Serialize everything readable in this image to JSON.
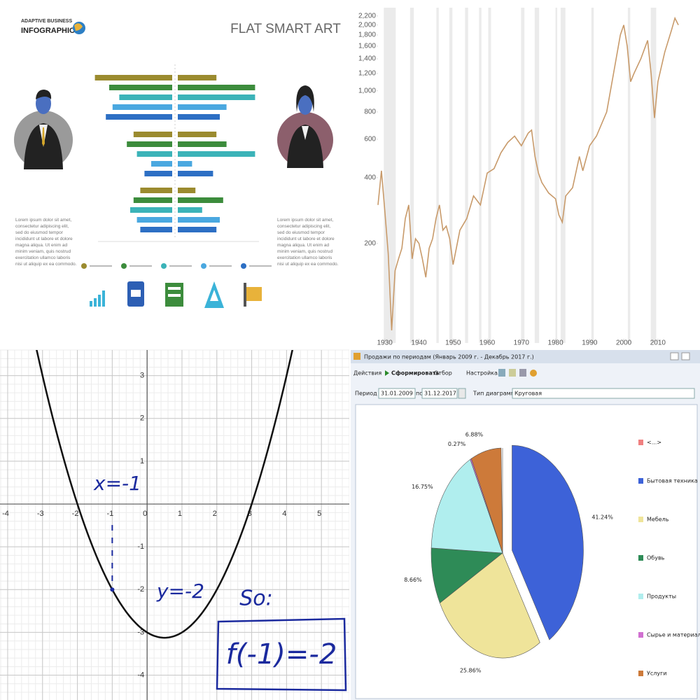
{
  "infographic": {
    "brand": [
      "ADAPTIVE BUSINESS",
      "INFOGRAPHICS"
    ],
    "title": "FLAT SMART ART",
    "colors": [
      "#9b8b2f",
      "#3c8c3c",
      "#3bb3b8",
      "#4aa8e0",
      "#2d6fc4"
    ],
    "xlim": [
      0,
      10
    ],
    "groups": [
      {
        "left": [
          9.2,
          7.5,
          6.3,
          7.1,
          7.9
        ],
        "right": [
          4.6,
          9.2,
          9.2,
          5.8,
          5.0
        ]
      },
      {
        "left": [
          4.6,
          5.4,
          4.2,
          2.5,
          3.3
        ],
        "right": [
          4.6,
          5.8,
          9.2,
          1.7,
          4.2
        ]
      },
      {
        "left": [
          3.8,
          4.6,
          5.0,
          4.2,
          3.8
        ],
        "right": [
          2.1,
          5.4,
          2.9,
          5.0,
          4.6
        ]
      }
    ],
    "text_left": "Lorem ipsum dolor sit amet, consectetur adipiscing elit, sed do eiusmod tempor incididunt ut labore et dolore magna aliqua. Ut enim ad minim veniam, quis nostrud exercitation ullamco laboris nisi ut aliquip ex ea commodo.",
    "text_right": "Lorem ipsum dolor sit amet, consectetur adipiscing elit, sed do eiusmod tempor incididunt ut labore et dolore magna aliqua. Ut enim ad minim veniam, quis nostrud exercitation ullamco laboris nisi ut aliquip ex ea commodo."
  },
  "line_chart": {
    "type": "line",
    "log_scale": true,
    "color": "#c89a6a",
    "band_color": "#ebebeb",
    "xlim": [
      1928,
      2017
    ],
    "ylim": [
      70,
      2400
    ],
    "xticks": [
      1930,
      1940,
      1950,
      1960,
      1970,
      1980,
      1990,
      2000,
      2010
    ],
    "yticks": [
      200,
      400,
      600,
      800,
      {
        "value": 1000,
        "label": "1,000"
      },
      {
        "value": 1200,
        "label": "1,200"
      },
      {
        "value": 1400,
        "label": "1,400"
      },
      {
        "value": 1600,
        "label": "1,600"
      },
      {
        "value": 1800,
        "label": "1,800"
      },
      {
        "value": 2000,
        "label": "2,000"
      },
      {
        "value": 2200,
        "label": "2,200"
      }
    ],
    "bands": [
      [
        1929.7,
        1933.2
      ],
      [
        1937.4,
        1938.5
      ],
      [
        1945.1,
        1945.8
      ],
      [
        1948.9,
        1949.8
      ],
      [
        1953.5,
        1954.4
      ],
      [
        1957.6,
        1958.3
      ],
      [
        1960.3,
        1961.1
      ],
      [
        1969.9,
        1970.9
      ],
      [
        1973.9,
        1975.2
      ],
      [
        1980.0,
        1980.5
      ],
      [
        1981.5,
        1982.9
      ],
      [
        1990.5,
        1991.2
      ],
      [
        2001.2,
        2001.9
      ],
      [
        2007.9,
        2009.5
      ]
    ],
    "x": [
      1928,
      1929,
      1930,
      1931,
      1932,
      1933,
      1934,
      1935,
      1936,
      1937,
      1938,
      1939,
      1940,
      1941,
      1942,
      1943,
      1944,
      1945,
      1946,
      1947,
      1948,
      1949,
      1950,
      1952,
      1954,
      1956,
      1958,
      1960,
      1962,
      1964,
      1966,
      1968,
      1970,
      1972,
      1973,
      1974,
      1975,
      1976,
      1978,
      1980,
      1981,
      1982,
      1983,
      1985,
      1987,
      1988,
      1990,
      1992,
      1995,
      1997,
      1999,
      2000,
      2001,
      2002,
      2003,
      2005,
      2007,
      2008,
      2009,
      2010,
      2012,
      2014,
      2015,
      2016
    ],
    "values": [
      300,
      430,
      280,
      180,
      80,
      150,
      170,
      190,
      260,
      300,
      170,
      210,
      200,
      170,
      140,
      190,
      210,
      260,
      300,
      230,
      240,
      210,
      160,
      230,
      260,
      330,
      300,
      420,
      440,
      520,
      580,
      620,
      560,
      640,
      660,
      500,
      420,
      380,
      340,
      320,
      270,
      250,
      330,
      360,
      500,
      430,
      560,
      620,
      800,
      1200,
      1800,
      2000,
      1600,
      1100,
      1200,
      1400,
      1700,
      1200,
      750,
      1100,
      1500,
      1900,
      2150,
      2000
    ]
  },
  "math_graph": {
    "xlim": [
      -4.22,
      5.82
    ],
    "ylim": [
      -4.58,
      3.6
    ],
    "xticks": [
      -4,
      -3,
      -2,
      -1,
      0,
      1,
      2,
      3,
      4,
      5
    ],
    "yticks": [
      -4,
      -3,
      -2,
      -1,
      1,
      2,
      3
    ],
    "minor_grid": 0.2,
    "curve": {
      "coefficients": [
        0.5,
        -0.5,
        -3
      ],
      "color": "#111111"
    },
    "point": {
      "x": -1,
      "y": -2
    },
    "annotations": [
      "x=-1",
      "y=-2",
      "So:",
      "f(-1)=-2"
    ]
  },
  "window": {
    "title": "Продажи по периодам (Январь 2009 г. - Декабрь 2017 г.)",
    "toolbar": [
      "Действия",
      "Сформировать",
      "Отбор",
      "Настройка..."
    ],
    "period_from_label": "Период с:",
    "period_from": "31.01.2009",
    "period_to_label": "по:",
    "period_to": "31.12.2017",
    "chart_type_label": "Тип диаграммы:",
    "chart_type": "Круговая",
    "chart": {
      "type": "pie",
      "categories": [
        "<...>",
        "Бытовая техника",
        "Мебель",
        "Обувь",
        "Продукты",
        "Сырье и материалы",
        "Услуги"
      ],
      "colors": [
        "#f08080",
        "#3d62d8",
        "#efe49a",
        "#2e8b57",
        "#b0eeee",
        "#d070d0",
        "#cd7a3a"
      ],
      "values": [
        0,
        41.24,
        25.86,
        8.66,
        16.75,
        0.27,
        6.88
      ],
      "value_labels": [
        null,
        "41.24%",
        "25.86%",
        "8.66%",
        "16.75%",
        "0.27%",
        "6.88%"
      ],
      "exploded": 1
    }
  }
}
